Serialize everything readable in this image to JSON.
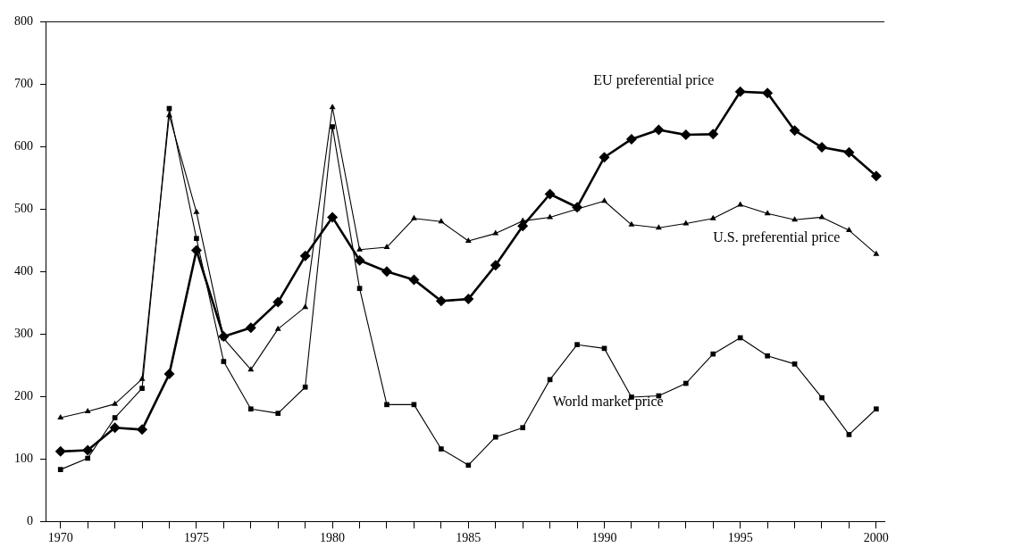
{
  "chart_data": {
    "type": "line",
    "x": [
      1970,
      1971,
      1972,
      1973,
      1974,
      1975,
      1976,
      1977,
      1978,
      1979,
      1980,
      1981,
      1982,
      1983,
      1984,
      1985,
      1986,
      1987,
      1988,
      1989,
      1990,
      1991,
      1992,
      1993,
      1994,
      1995,
      1996,
      1997,
      1998,
      1999,
      2000
    ],
    "series": [
      {
        "name": "EU preferential price",
        "color": "#000000",
        "marker": "diamond",
        "values": [
          112,
          114,
          150,
          147,
          236,
          434,
          296,
          310,
          351,
          425,
          487,
          418,
          400,
          387,
          353,
          356,
          410,
          473,
          524,
          503,
          583,
          612,
          627,
          619,
          620,
          688,
          686,
          626,
          599,
          591,
          553
        ]
      },
      {
        "name": "U.S. preferential price",
        "color": "#000000",
        "marker": "triangle",
        "values": [
          166,
          176,
          188,
          228,
          650,
          495,
          293,
          243,
          308,
          343,
          663,
          435,
          439,
          485,
          480,
          449,
          461,
          481,
          487,
          500,
          513,
          475,
          470,
          477,
          485,
          507,
          493,
          483,
          487,
          466,
          428
        ]
      },
      {
        "name": "World market price",
        "color": "#000000",
        "marker": "square",
        "values": [
          83,
          101,
          166,
          213,
          661,
          453,
          256,
          180,
          173,
          215,
          632,
          373,
          187,
          187,
          116,
          90,
          135,
          150,
          227,
          283,
          277,
          199,
          201,
          221,
          268,
          294,
          265,
          252,
          198,
          139,
          180
        ]
      }
    ],
    "xlim": [
      1969.45,
      2000.3
    ],
    "xticks": [
      1970,
      {
        "value": 1971,
        "label": null
      },
      {
        "value": 1972,
        "label": null
      },
      {
        "value": 1973,
        "label": null
      },
      {
        "value": 1974,
        "label": null
      },
      1975,
      {
        "value": 1976,
        "label": null
      },
      {
        "value": 1977,
        "label": null
      },
      {
        "value": 1978,
        "label": null
      },
      {
        "value": 1979,
        "label": null
      },
      1980,
      {
        "value": 1981,
        "label": null
      },
      {
        "value": 1982,
        "label": null
      },
      {
        "value": 1983,
        "label": null
      },
      {
        "value": 1984,
        "label": null
      },
      1985,
      {
        "value": 1986,
        "label": null
      },
      {
        "value": 1987,
        "label": null
      },
      {
        "value": 1988,
        "label": null
      },
      {
        "value": 1989,
        "label": null
      },
      1990,
      {
        "value": 1991,
        "label": null
      },
      {
        "value": 1992,
        "label": null
      },
      {
        "value": 1993,
        "label": null
      },
      {
        "value": 1994,
        "label": null
      },
      1995,
      {
        "value": 1996,
        "label": null
      },
      {
        "value": 1997,
        "label": null
      },
      {
        "value": 1998,
        "label": null
      },
      {
        "value": 1999,
        "label": null
      },
      2000
    ],
    "ylim": [
      0,
      800
    ],
    "yticks": [
      0,
      100,
      200,
      300,
      400,
      500,
      600,
      700,
      800
    ],
    "grid": false,
    "legend": false,
    "line_style": "solid"
  }
}
